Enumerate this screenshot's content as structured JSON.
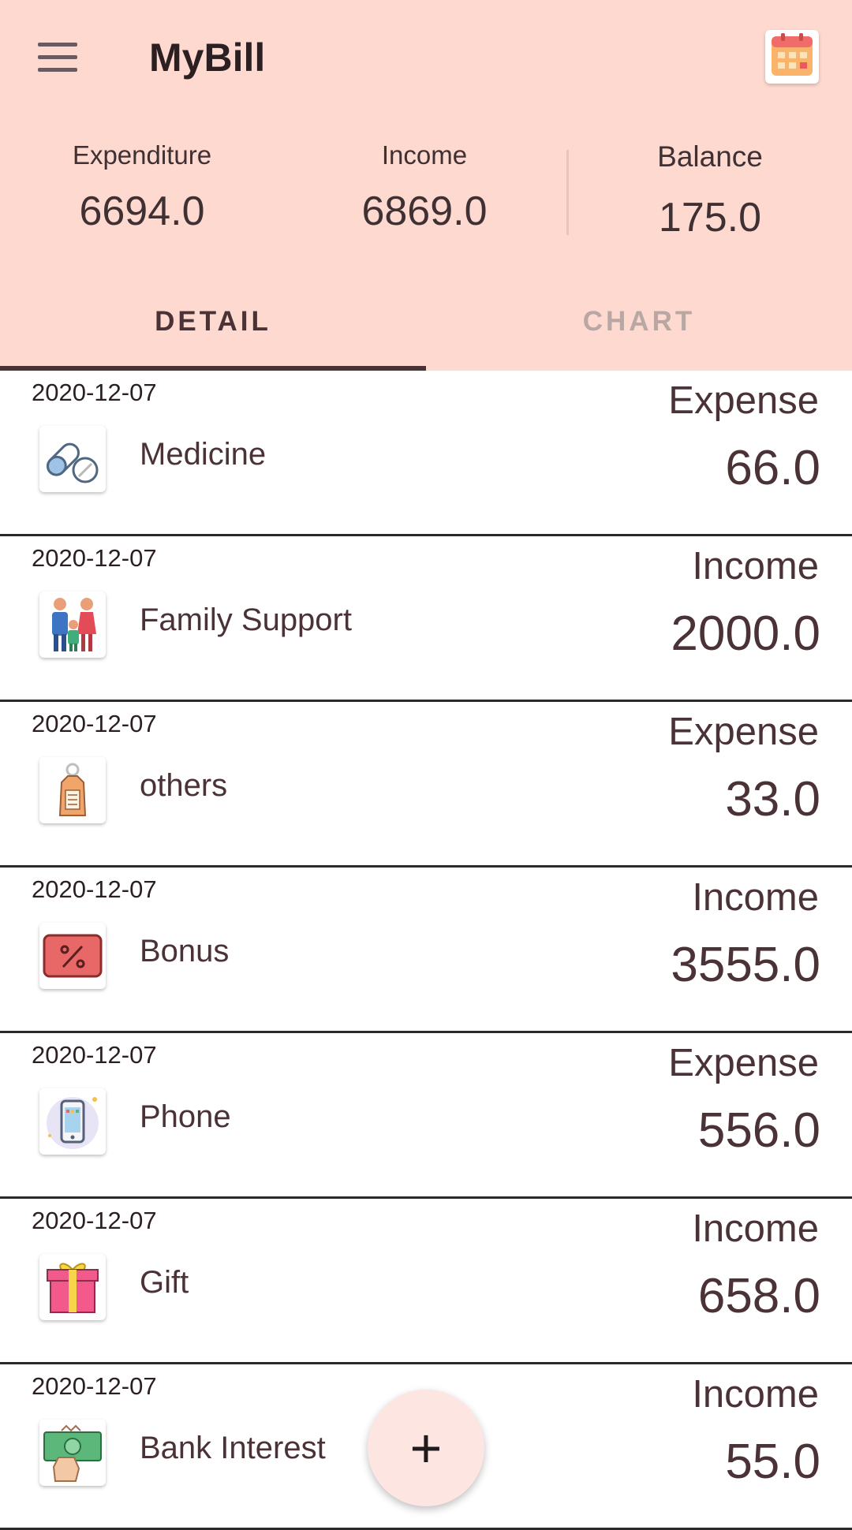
{
  "app": {
    "title": "MyBill"
  },
  "summary": {
    "expenditure_label": "Expenditure",
    "expenditure_value": "6694.0",
    "income_label": "Income",
    "income_value": "6869.0",
    "balance_label": "Balance",
    "balance_value": "175.0"
  },
  "tabs": [
    {
      "label": "DETAIL",
      "active": true
    },
    {
      "label": "CHART",
      "active": false
    }
  ],
  "records": [
    {
      "date": "2020-12-07",
      "name": "Medicine",
      "type": "Expense",
      "amount": "66.0",
      "icon": "medicine-icon"
    },
    {
      "date": "2020-12-07",
      "name": "Family Support",
      "type": "Income",
      "amount": "2000.0",
      "icon": "family-icon"
    },
    {
      "date": "2020-12-07",
      "name": "others",
      "type": "Expense",
      "amount": "33.0",
      "icon": "tag-icon"
    },
    {
      "date": "2020-12-07",
      "name": "Bonus",
      "type": "Income",
      "amount": "3555.0",
      "icon": "percent-icon"
    },
    {
      "date": "2020-12-07",
      "name": "Phone",
      "type": "Expense",
      "amount": "556.0",
      "icon": "phone-icon"
    },
    {
      "date": "2020-12-07",
      "name": "Gift",
      "type": "Income",
      "amount": "658.0",
      "icon": "gift-icon"
    },
    {
      "date": "2020-12-07",
      "name": "Bank Interest",
      "type": "Income",
      "amount": "55.0",
      "icon": "money-icon"
    }
  ],
  "fab": {
    "label": "+"
  },
  "colors": {
    "header_bg": "#fdd9cf",
    "text": "#4a3236",
    "inactive_tab": "#b9a7a3",
    "fab_bg": "#fde6e1"
  }
}
